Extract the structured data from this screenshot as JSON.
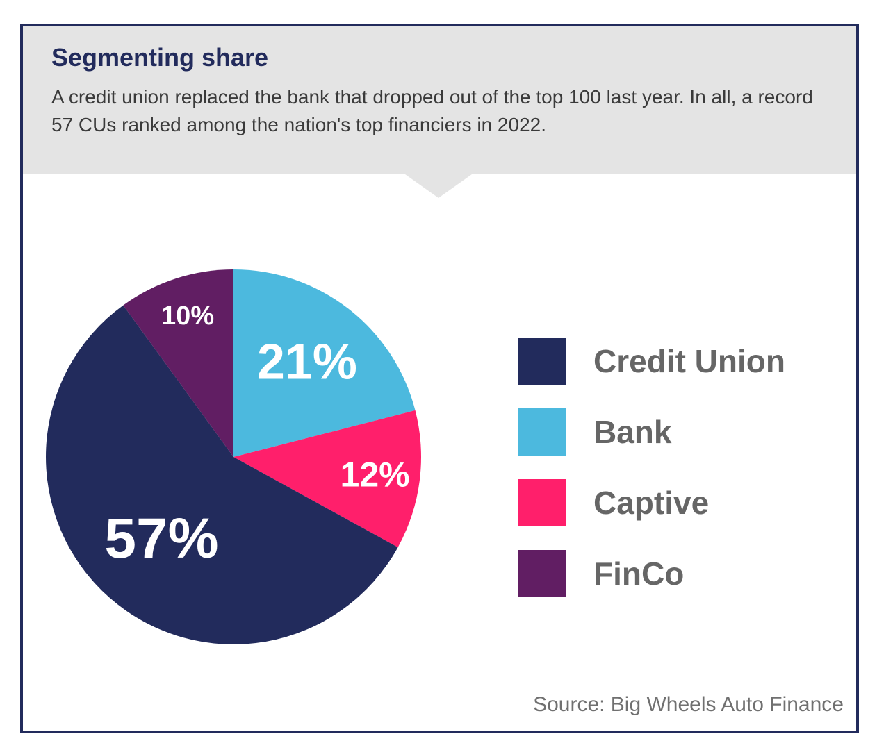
{
  "header": {
    "title": "Segmenting share",
    "subtitle": "A credit union replaced the bank that dropped out of the top 100 last year. In all, a record 57 CUs ranked among the nation's top financiers in 2022."
  },
  "chart_data": {
    "type": "pie",
    "title": "Segmenting share",
    "labels": [
      "Credit Union",
      "Bank",
      "Captive",
      "FinCo"
    ],
    "values": [
      57,
      21,
      12,
      10
    ],
    "value_labels": [
      "57%",
      "21%",
      "12%",
      "10%"
    ],
    "colors": [
      "#222b5c",
      "#4cb9de",
      "#ff1f6b",
      "#611e63"
    ],
    "legend_position": "right"
  },
  "source": "Source: Big Wheels Auto Finance"
}
